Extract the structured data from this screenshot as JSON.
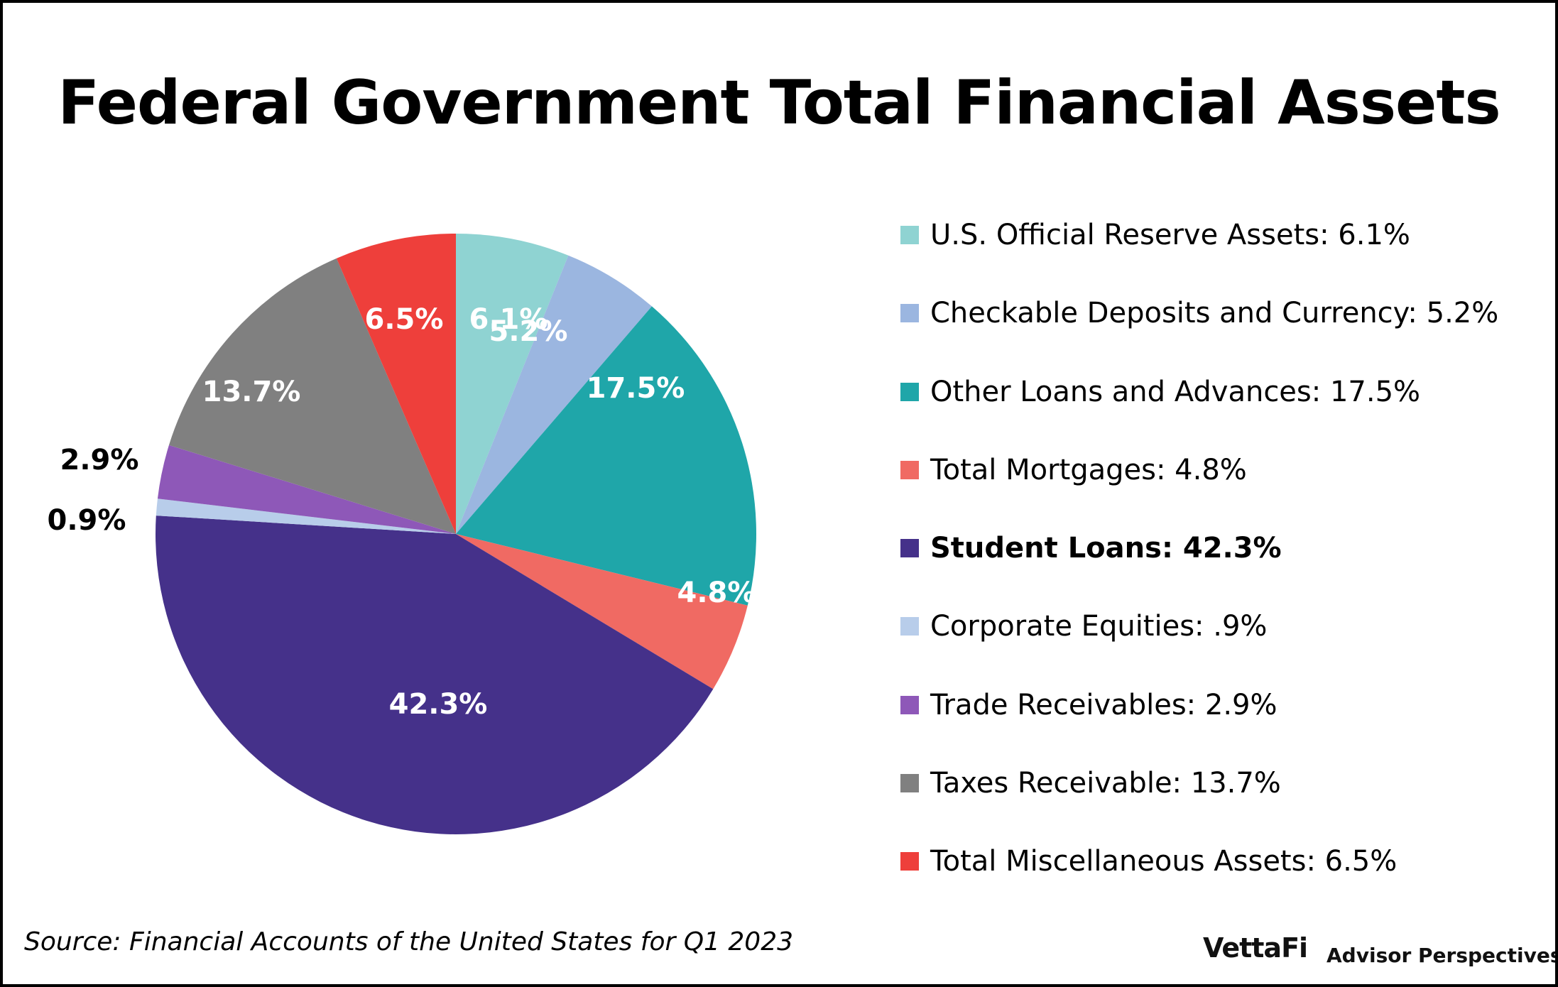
{
  "title": "Federal Government Total Financial Assets",
  "source": "Source: Financial Accounts of the United States for Q1 2023",
  "brand": {
    "logo": "VettaFi",
    "tagline": "Advisor Perspectives"
  },
  "chart_data": {
    "type": "pie",
    "title": "Federal Government Total Financial Assets",
    "start_angle": "12 o'clock, clockwise",
    "legend_position": "right",
    "slices": [
      {
        "label": "U.S. Official Reserve Assets",
        "value": 6.1,
        "data_label": "6.1%",
        "legend_text": "U.S. Official Reserve Assets: 6.1%",
        "color": "#8fd3d2",
        "label_color": "#ffffff",
        "emphasis": false,
        "label_outside": false
      },
      {
        "label": "Checkable Deposits and Currency",
        "value": 5.2,
        "data_label": "5.2%",
        "legend_text": "Checkable Deposits and Currency: 5.2%",
        "color": "#9bb6e0",
        "label_color": "#ffffff",
        "emphasis": false,
        "label_outside": false
      },
      {
        "label": "Other Loans and Advances",
        "value": 17.5,
        "data_label": "17.5%",
        "legend_text": "Other Loans and Advances: 17.5%",
        "color": "#1fa6a9",
        "label_color": "#ffffff",
        "emphasis": false,
        "label_outside": false
      },
      {
        "label": "Total Mortgages",
        "value": 4.8,
        "data_label": "4.8%",
        "legend_text": "Total Mortgages: 4.8%",
        "color": "#f06a63",
        "label_color": "#ffffff",
        "emphasis": false,
        "label_outside": false
      },
      {
        "label": "Student Loans",
        "value": 42.3,
        "data_label": "42.3%",
        "legend_text": "Student Loans: 42.3%",
        "color": "#45318a",
        "label_color": "#ffffff",
        "emphasis": true,
        "label_outside": false
      },
      {
        "label": "Corporate Equities",
        "value": 0.9,
        "data_label": "0.9%",
        "legend_text": "Corporate Equities: .9%",
        "color": "#b8cdea",
        "label_color": "#000000",
        "emphasis": false,
        "label_outside": true
      },
      {
        "label": "Trade Receivables",
        "value": 2.9,
        "data_label": "2.9%",
        "legend_text": "Trade Receivables: 2.9%",
        "color": "#8e58b8",
        "label_color": "#000000",
        "emphasis": false,
        "label_outside": true
      },
      {
        "label": "Taxes Receivable",
        "value": 13.7,
        "data_label": "13.7%",
        "legend_text": "Taxes Receivable: 13.7%",
        "color": "#808080",
        "label_color": "#ffffff",
        "emphasis": false,
        "label_outside": false
      },
      {
        "label": "Total Miscellaneous Assets",
        "value": 6.5,
        "data_label": "6.5%",
        "legend_text": "Total Miscellaneous Assets: 6.5%",
        "color": "#ee3f3b",
        "label_color": "#ffffff",
        "emphasis": false,
        "label_outside": false
      }
    ]
  }
}
